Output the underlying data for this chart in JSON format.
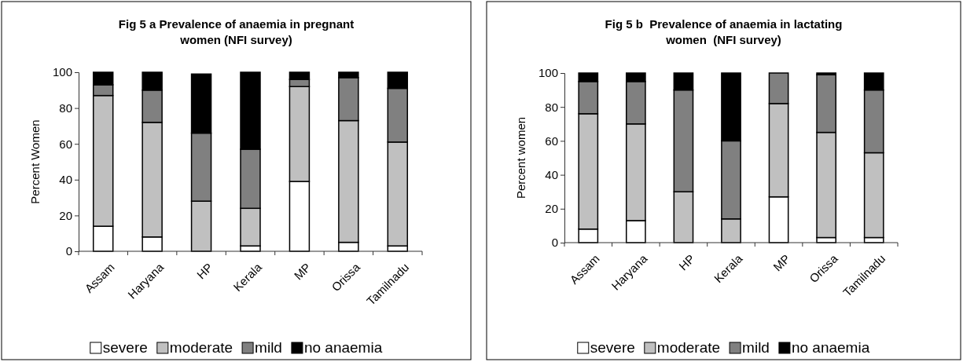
{
  "chart_data": [
    {
      "type": "bar",
      "title": "Fig 5 a Prevalence of anaemia in pregnant women (NFI survey)",
      "ylabel": "Percent Women",
      "categories": [
        "Assam",
        "Haryana",
        "HP",
        "Kerala",
        "MP",
        "Orissa",
        "Tamilnadu"
      ],
      "stacked": true,
      "ylim": [
        0,
        100
      ],
      "yticks": [
        0,
        20,
        40,
        60,
        80,
        100
      ],
      "legend": "bottom",
      "series": [
        {
          "name": "severe",
          "color": "#ffffff",
          "values": [
            14,
            8,
            0,
            3,
            39,
            5,
            3
          ]
        },
        {
          "name": "moderate",
          "color": "#c0c0c0",
          "values": [
            73,
            64,
            28,
            21,
            53,
            68,
            58
          ]
        },
        {
          "name": "mild",
          "color": "#808080",
          "values": [
            6,
            18,
            38,
            33,
            4,
            24,
            30
          ]
        },
        {
          "name": "no anaemia",
          "color": "#000000",
          "values": [
            7,
            10,
            33,
            43,
            4,
            3,
            9
          ]
        }
      ]
    },
    {
      "type": "bar",
      "title": "Fig 5 b  Prevalence of anaemia in lactating women  (NFI survey)",
      "ylabel": "Percent women",
      "categories": [
        "Assam",
        "Haryana",
        "HP",
        "Kerala",
        "MP",
        "Orissa",
        "Tamilnadu"
      ],
      "stacked": true,
      "ylim": [
        0,
        100
      ],
      "yticks": [
        0,
        20,
        40,
        60,
        80,
        100
      ],
      "legend": "bottom",
      "series": [
        {
          "name": "severe",
          "color": "#ffffff",
          "values": [
            8,
            13,
            0,
            0,
            27,
            3,
            3
          ]
        },
        {
          "name": "moderate",
          "color": "#c0c0c0",
          "values": [
            68,
            57,
            30,
            14,
            55,
            62,
            50
          ]
        },
        {
          "name": "mild",
          "color": "#808080",
          "values": [
            19,
            25,
            60,
            46,
            18,
            34,
            37
          ]
        },
        {
          "name": "no anaemia",
          "color": "#000000",
          "values": [
            5,
            5,
            10,
            40,
            0,
            1,
            10
          ]
        }
      ]
    }
  ]
}
